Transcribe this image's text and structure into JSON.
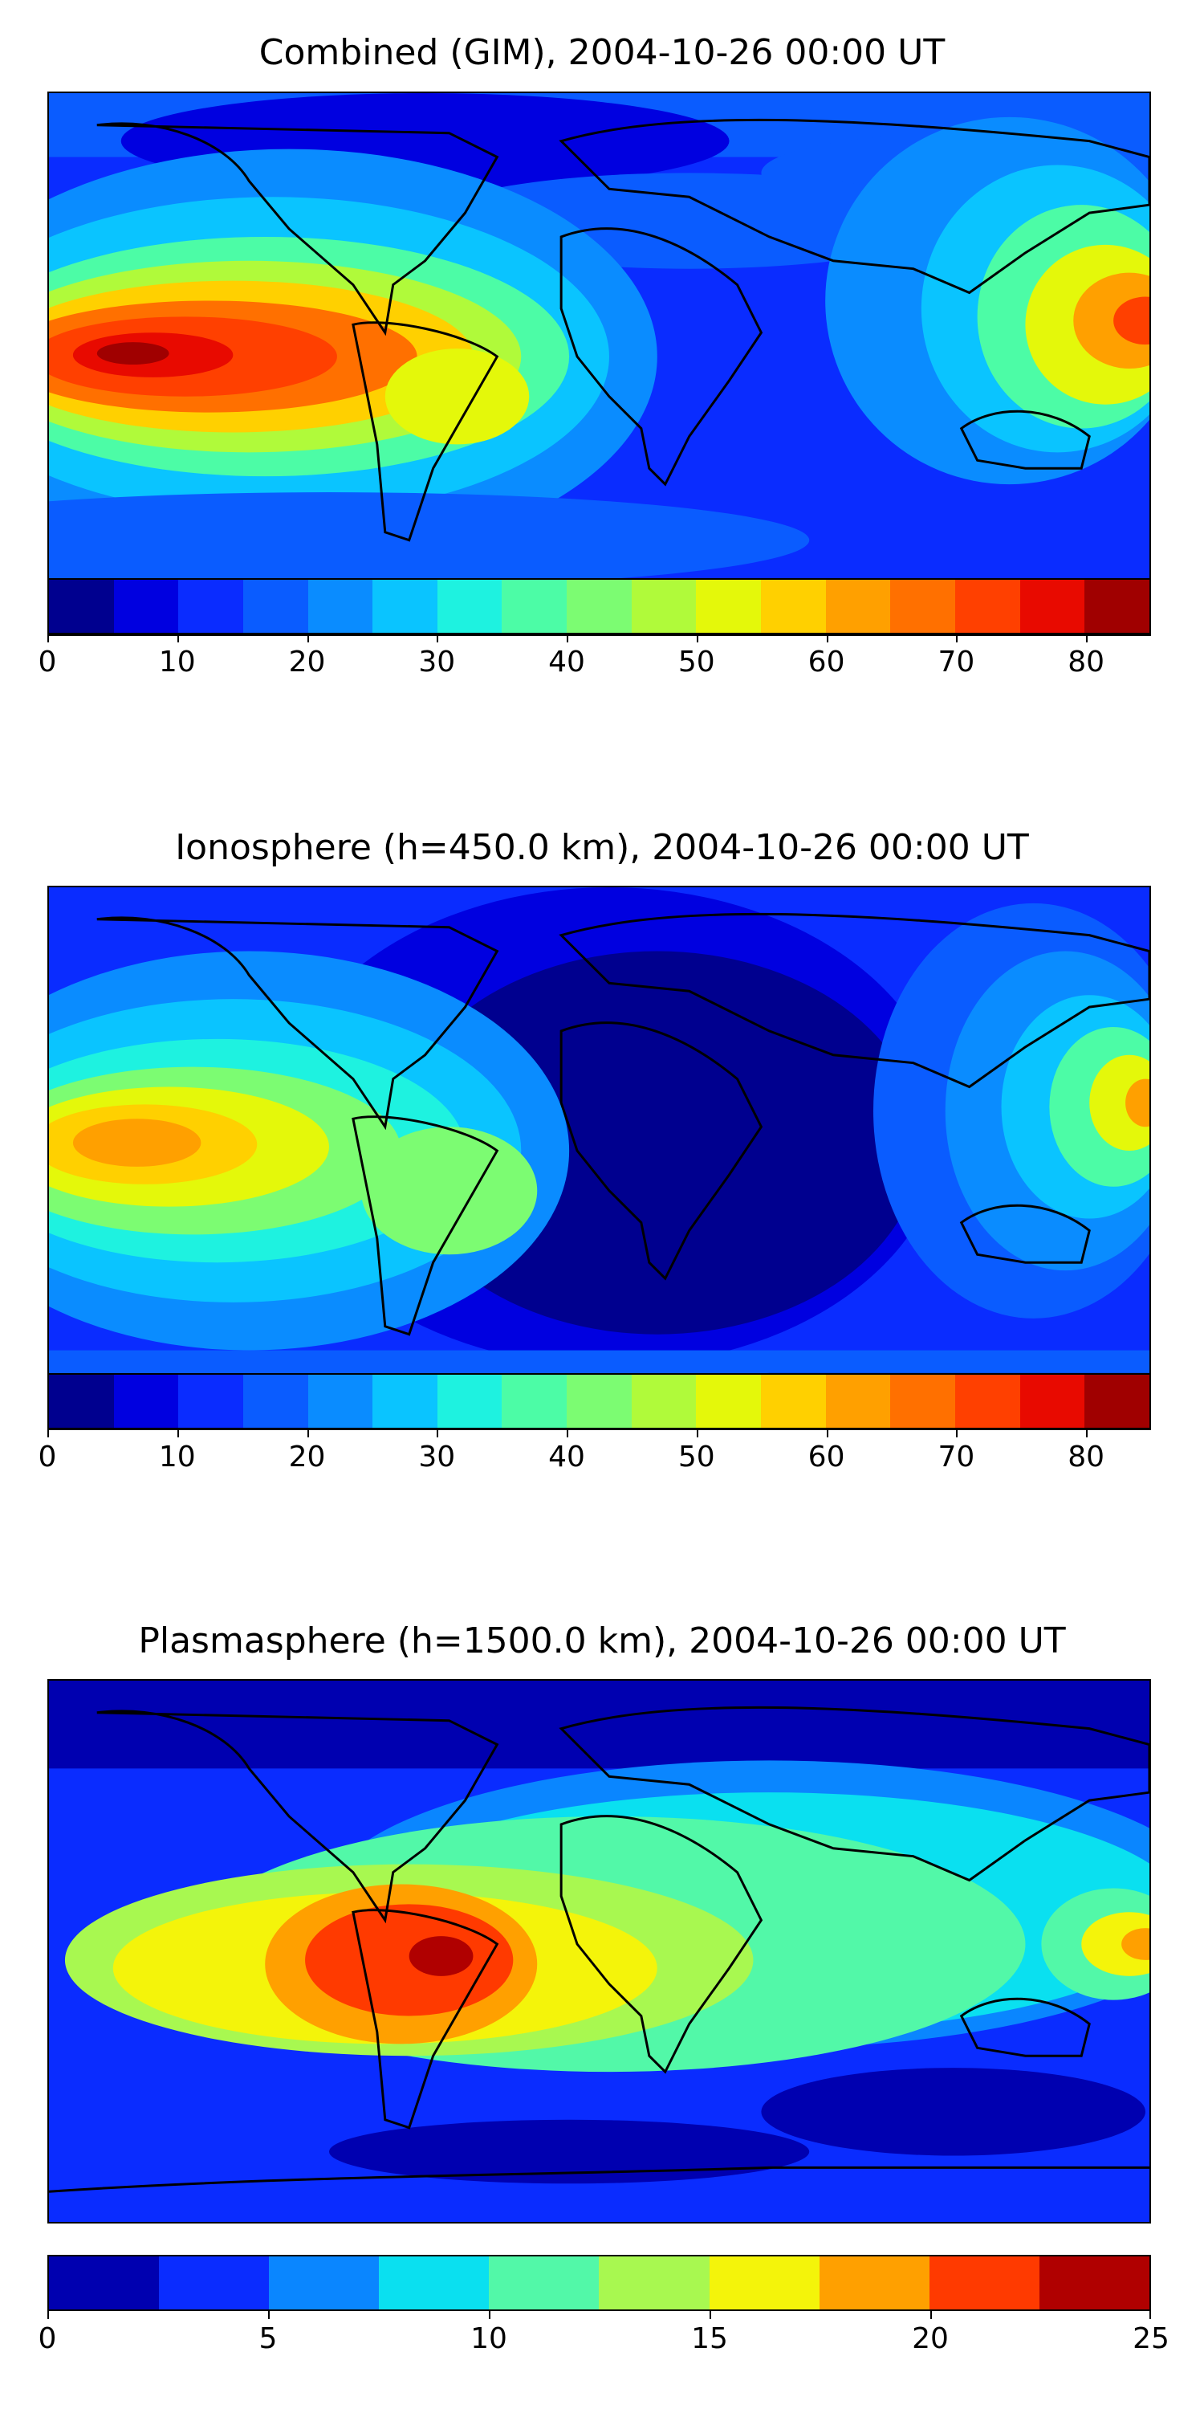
{
  "panels": [
    {
      "title": "Combined (GIM), 2004-10-26 00:00 UT",
      "colorbar": {
        "min": 0,
        "max": 85,
        "step": 5,
        "ticks": [
          "0",
          "10",
          "20",
          "30",
          "40",
          "50",
          "60",
          "70",
          "80"
        ],
        "colors": [
          "#00008f",
          "#0000e0",
          "#0a2cff",
          "#0a5cff",
          "#0a8cff",
          "#0ac4ff",
          "#1ef2e0",
          "#4cfca6",
          "#7cfc72",
          "#b0fa3a",
          "#e4f80a",
          "#ffd000",
          "#ffa000",
          "#ff7000",
          "#ff4000",
          "#e80a00",
          "#a00000"
        ]
      }
    },
    {
      "title": "Ionosphere  (h=450.0 km), 2004-10-26 00:00 UT",
      "colorbar": {
        "min": 0,
        "max": 85,
        "step": 5,
        "ticks": [
          "0",
          "10",
          "20",
          "30",
          "40",
          "50",
          "60",
          "70",
          "80"
        ],
        "colors": [
          "#00008f",
          "#0000e0",
          "#0a2cff",
          "#0a5cff",
          "#0a8cff",
          "#0ac4ff",
          "#1ef2e0",
          "#4cfca6",
          "#7cfc72",
          "#b0fa3a",
          "#e4f80a",
          "#ffd000",
          "#ffa000",
          "#ff7000",
          "#ff4000",
          "#e80a00",
          "#a00000"
        ]
      }
    },
    {
      "title": "Plasmasphere (h=1500.0 km), 2004-10-26 00:00 UT",
      "colorbar": {
        "min": 0,
        "max": 25,
        "step": 2.5,
        "ticks": [
          "0",
          "5",
          "10",
          "15",
          "20",
          "25"
        ],
        "colors": [
          "#0000b0",
          "#0a2cff",
          "#0a86ff",
          "#0ae0f0",
          "#52f8a8",
          "#a8f850",
          "#f4f40a",
          "#ffa000",
          "#ff3a00",
          "#b00000"
        ]
      }
    }
  ]
}
